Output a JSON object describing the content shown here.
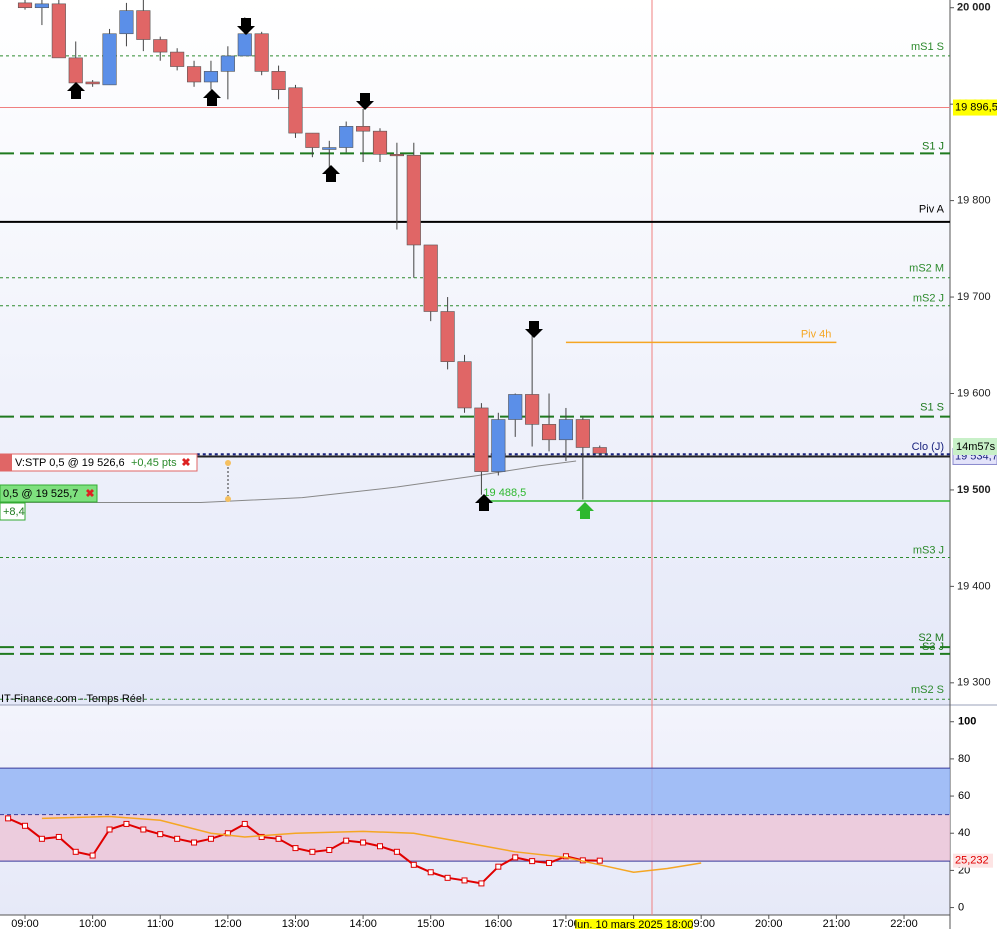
{
  "chart_data": [
    {
      "type": "candlestick",
      "x": [
        9,
        9.25,
        9.5,
        9.75,
        10,
        10.25,
        10.5,
        10.75,
        11,
        11.25,
        11.5,
        11.75,
        12,
        12.25,
        12.5,
        12.75,
        13,
        13.25,
        13.5,
        13.75,
        14,
        14.25,
        14.5,
        14.75,
        15,
        15.25,
        15.5,
        15.75,
        16,
        16.25,
        16.5,
        16.75,
        17,
        17.25,
        17.5
      ],
      "open": [
        20005,
        20000,
        20004,
        19948,
        19923,
        19920,
        19973,
        19997,
        19967,
        19954,
        19939,
        19923,
        19934,
        19950,
        19973,
        19934,
        19917,
        19870,
        19853,
        19855,
        19877,
        19872,
        19848,
        19847,
        19754,
        19685,
        19633,
        19585,
        19519,
        19573,
        19599,
        19568,
        19552,
        19573,
        19544
      ],
      "high": [
        20008,
        20008,
        20008,
        19965,
        19925,
        19978,
        20005,
        20008,
        19970,
        19958,
        19945,
        19945,
        19960,
        19990,
        19975,
        19940,
        19920,
        19870,
        19862,
        19882,
        19895,
        19875,
        19860,
        19860,
        19754,
        19700,
        19640,
        19590,
        19580,
        19600,
        19670,
        19600,
        19585,
        19575,
        19546
      ],
      "low": [
        19998,
        19982,
        19948,
        19920,
        19918,
        19920,
        19960,
        19955,
        19945,
        19935,
        19918,
        19915,
        19905,
        19950,
        19930,
        19905,
        19865,
        19845,
        19835,
        19850,
        19840,
        19840,
        19770,
        19720,
        19675,
        19625,
        19580,
        19495,
        19515,
        19555,
        19545,
        19540,
        19530,
        19490,
        19536
      ],
      "close": [
        20000,
        20004,
        19948,
        19922,
        19921,
        19973,
        19997,
        19967,
        19954,
        19939,
        19923,
        19934,
        19950,
        19973,
        19934,
        19915,
        19870,
        19855,
        19855,
        19877,
        19872,
        19848,
        19847,
        19754,
        19685,
        19633,
        19585,
        19519,
        19573,
        19599,
        19568,
        19552,
        19573,
        19544,
        19538
      ],
      "up_color": "#5b8fe8",
      "down_color": "#e06666",
      "xlim": [
        8.63,
        22.68
      ],
      "ylim": [
        19277,
        20008
      ],
      "yticks": [
        {
          "value": 20000,
          "label": "20 000"
        },
        {
          "value": 19900,
          "label": "19 900"
        },
        {
          "value": 19800,
          "label": "19 800"
        },
        {
          "value": 19700,
          "label": "19 700"
        },
        {
          "value": 19600,
          "label": "19 600"
        },
        {
          "value": 19500,
          "label": "19 500"
        },
        {
          "value": 19400,
          "label": "19 400"
        },
        {
          "value": 19300,
          "label": "19 300"
        }
      ],
      "levels": [
        {
          "label": "mS1 S",
          "value": 19950,
          "style": "dotted",
          "color": "#2e8b2e"
        },
        {
          "label": "S1 J",
          "value": 19849,
          "style": "dashed",
          "color": "#1f7a1f"
        },
        {
          "label": "Piv A",
          "value": 19778,
          "style": "solid",
          "color": "#000000"
        },
        {
          "label": "mS2 M",
          "value": 19720,
          "style": "dotted",
          "color": "#2e8b2e"
        },
        {
          "label": "mS2 J",
          "value": 19691,
          "style": "dotted",
          "color": "#2e8b2e"
        },
        {
          "label": "S1 S",
          "value": 19576,
          "style": "dashed",
          "color": "#1f7a1f"
        },
        {
          "label": "mS3 J",
          "value": 19430,
          "style": "dotted",
          "color": "#2e8b2e"
        },
        {
          "label": "S2 M",
          "value": 19337,
          "style": "dashed",
          "color": "#1f7a1f"
        },
        {
          "label": "S3 J",
          "value": 19330,
          "style": "dashed",
          "color": "#1f7a1f"
        },
        {
          "label": "mS2 S",
          "value": 19283,
          "style": "dotted",
          "color": "#2e8b2e"
        }
      ],
      "pivot_4h": {
        "label": "Piv 4h",
        "value": 19653,
        "x": [
          17,
          21
        ],
        "color": "#f5a623"
      },
      "close_day": {
        "label": "Clo (J)",
        "value": 19537,
        "x": 11.54,
        "color": "#1a237e"
      },
      "cursor_price": {
        "value": 19896.5,
        "label": "19 896,5"
      },
      "last_price": {
        "value": 19534.7,
        "label": "19 534,7"
      },
      "session_low": {
        "value": 19488.5,
        "label": "19 488,5",
        "x": 15.75
      },
      "moving_average": {
        "x": [
          8.63,
          11.6,
          13.1,
          14.5,
          15.7,
          16.6,
          17.15
        ],
        "values": [
          19487,
          19487,
          19492,
          19503,
          19515,
          19525,
          19530
        ],
        "color": "#888888"
      },
      "timer": "14m57s",
      "orders": {
        "stop": "V:STP 0,5 @ 19 526,6",
        "stop_pts": "+0,45 pts",
        "position": "0,5 @ 19 525,7",
        "position_pnl": "+8,4"
      },
      "source": "IT-Finance.com - Temps Réel"
    },
    {
      "type": "line",
      "xlim": [
        8.63,
        22.68
      ],
      "ylim": [
        -4,
        109
      ],
      "yticks": [
        0,
        20,
        40,
        60,
        80,
        100
      ],
      "xticks": [
        {
          "value": 9,
          "label": "09:00"
        },
        {
          "value": 10,
          "label": "10:00"
        },
        {
          "value": 11,
          "label": "11:00"
        },
        {
          "value": 12,
          "label": "12:00"
        },
        {
          "value": 13,
          "label": "13:00"
        },
        {
          "value": 14,
          "label": "14:00"
        },
        {
          "value": 15,
          "label": "15:00"
        },
        {
          "value": 16,
          "label": "16:00"
        },
        {
          "value": 17,
          "label": "17:00"
        },
        {
          "value": 18,
          "label": "18:00"
        },
        {
          "value": 19,
          "label": "19:00"
        },
        {
          "value": 20,
          "label": "20:00"
        },
        {
          "value": 21,
          "label": "21:00"
        },
        {
          "value": 22,
          "label": "22:00"
        }
      ],
      "bands": [
        {
          "range": [
            50,
            75
          ],
          "color": "#8fb1f5"
        },
        {
          "range": [
            25,
            50
          ],
          "color": "#ecc3d6"
        }
      ],
      "band_lines": [
        75,
        50,
        25
      ],
      "series": [
        {
          "x": [
            8.75,
            9,
            9.25,
            9.5,
            9.75,
            10,
            10.25,
            10.5,
            10.75,
            11,
            11.25,
            11.5,
            11.75,
            12,
            12.25,
            12.5,
            12.75,
            13,
            13.25,
            13.5,
            13.75,
            14,
            14.25,
            14.5,
            14.75,
            15,
            15.25,
            15.5,
            15.75,
            16,
            16.25,
            16.5,
            16.75,
            17,
            17.25,
            17.5
          ],
          "values": [
            48,
            44,
            37,
            38,
            30,
            28,
            42,
            45,
            42,
            39.5,
            37,
            35,
            37,
            40,
            45,
            38,
            37,
            32,
            30,
            31,
            36,
            35,
            33,
            30,
            23,
            19,
            16,
            14.6,
            13,
            22,
            27,
            25,
            24,
            27.6,
            25.4,
            25.232
          ],
          "color": "#e00000",
          "last_label": "25,232"
        },
        {
          "x": [
            9.25,
            10.25,
            11,
            11.75,
            12.25,
            13,
            14,
            14.75,
            15.5,
            16.25,
            17,
            17.5,
            18,
            18.5,
            19
          ],
          "values": [
            48,
            49,
            47,
            40,
            38,
            40,
            41,
            40,
            35,
            30,
            27,
            23,
            19,
            21,
            24
          ],
          "color": "#f5a623"
        }
      ],
      "cursor_time": "lun. 10 mars 2025 18:00"
    }
  ]
}
